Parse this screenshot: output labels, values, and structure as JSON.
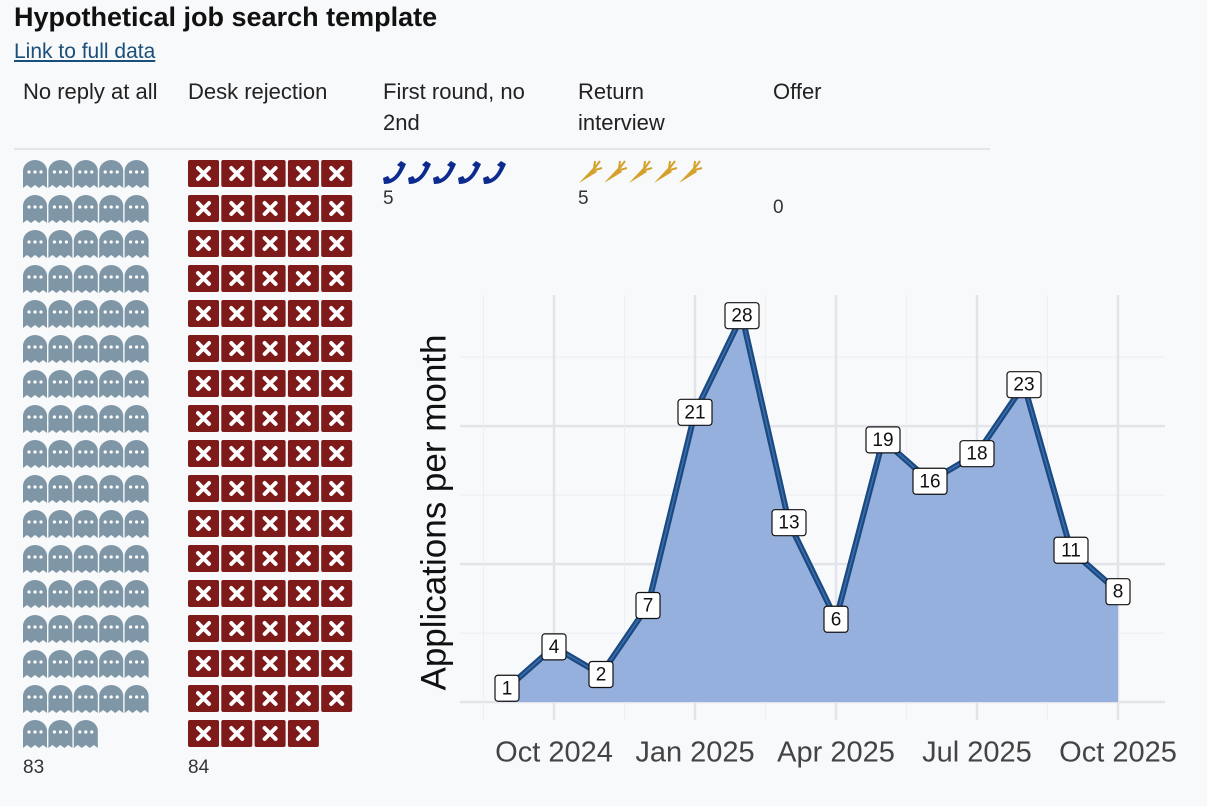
{
  "header": {
    "title": "Hypothetical job search template",
    "link": "Link to full data"
  },
  "columns": [
    {
      "label": "No reply at all",
      "count": 83,
      "icon": "ghost",
      "color": "#7f96a6"
    },
    {
      "label": "Desk rejection",
      "count": 84,
      "icon": "box",
      "color": "#7f1a1a"
    },
    {
      "label": "First round, no 2nd",
      "count": 5,
      "icon": "phone",
      "color": "#0d2a8f"
    },
    {
      "label": "Return interview",
      "count": 5,
      "icon": "carrot",
      "color": "#d4a12a"
    },
    {
      "label": "Offer",
      "count": 0,
      "icon": "star",
      "color": "#888888"
    }
  ],
  "chart_data": {
    "type": "area",
    "y_label": "Applications per month",
    "x": [
      "2024-09",
      "2024-10",
      "2024-11",
      "2024-12",
      "2025-01",
      "2025-02",
      "2025-03",
      "2025-04",
      "2025-05",
      "2025-06",
      "2025-07",
      "2025-08",
      "2025-09",
      "2025-10"
    ],
    "values": [
      1,
      4,
      2,
      7,
      21,
      28,
      13,
      6,
      19,
      16,
      18,
      23,
      11,
      8
    ],
    "color": "#95b0dd",
    "line_color": "#1c4a80",
    "xlim": [
      "2024-08",
      "2025-11"
    ],
    "xticks": [
      {
        "value": "2024-10",
        "label": "Oct 2024"
      },
      {
        "value": "2025-01",
        "label": "Jan 2025"
      },
      {
        "value": "2025-04",
        "label": "Apr 2025"
      },
      {
        "value": "2025-07",
        "label": "Jul 2025"
      },
      {
        "value": "2025-10",
        "label": "Oct 2025"
      }
    ],
    "ylim": [
      -1.3,
      29.5
    ],
    "grid": true
  }
}
